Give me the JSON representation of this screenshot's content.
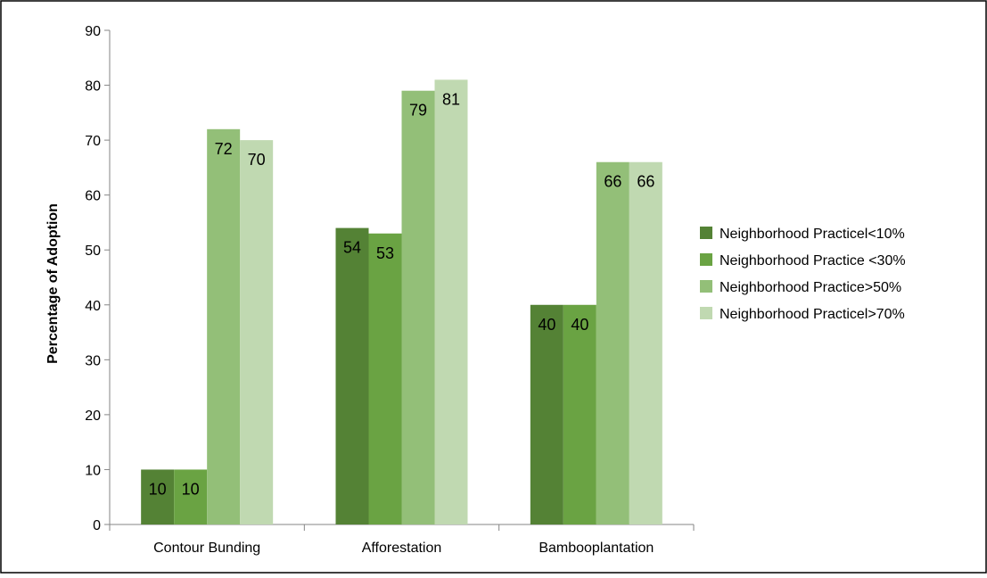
{
  "chart_data": {
    "type": "bar",
    "title": "",
    "xlabel": "",
    "ylabel": "Percentage of Adoption",
    "ylim": [
      0,
      90
    ],
    "yticks": [
      0,
      10,
      20,
      30,
      40,
      50,
      60,
      70,
      80,
      90
    ],
    "grid": false,
    "legend_position": "right",
    "categories": [
      "Contour Bunding",
      "Afforestation",
      "Bambooplantation"
    ],
    "series": [
      {
        "name": "Neighborhood Practicel<10%",
        "color": "#548235",
        "values": [
          10,
          54,
          40
        ]
      },
      {
        "name": "Neighborhood Practice <30%",
        "color": "#6aa343",
        "values": [
          10,
          53,
          40
        ]
      },
      {
        "name": "Neighborhood Practice>50%",
        "color": "#93bf78",
        "values": [
          72,
          79,
          66
        ]
      },
      {
        "name": "Neighborhood Practicel>70%",
        "color": "#c0d9b1",
        "values": [
          70,
          81,
          66
        ]
      }
    ]
  }
}
